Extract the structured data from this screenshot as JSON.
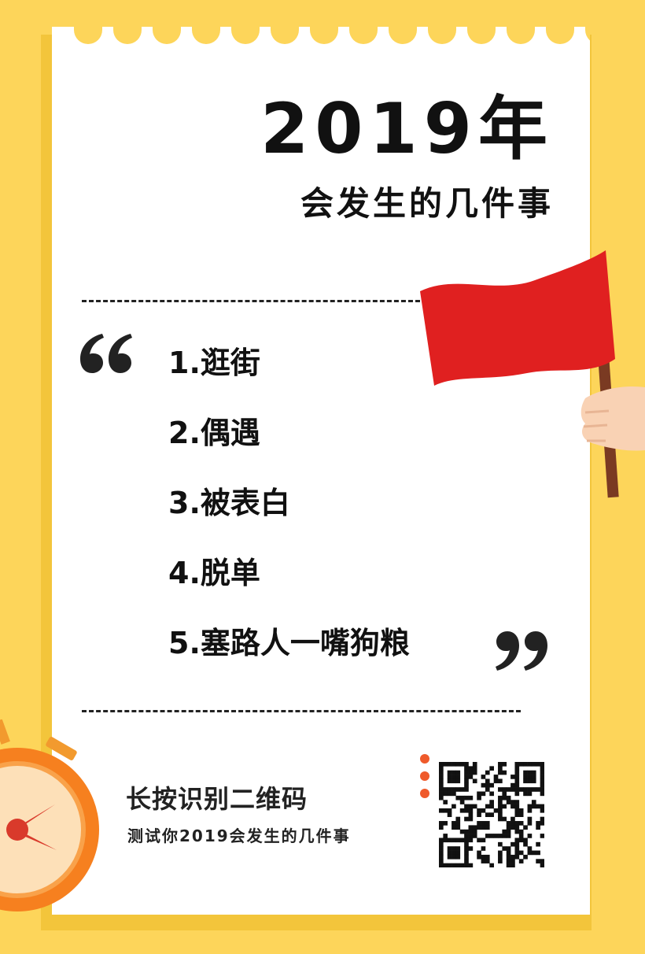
{
  "title": "2019年",
  "subtitle": "会发生的几件事",
  "items": [
    "1.逛街",
    "2.偶遇",
    "3.被表白",
    "4.脱单",
    "5.塞路人一嘴狗粮"
  ],
  "cta": {
    "main": "长按识别二维码",
    "sub": "测试你2019会发生的几件事"
  },
  "icons": {
    "open_quote": "open-quote-icon",
    "close_quote": "close-quote-icon",
    "flag": "red-flag-illustration",
    "clock": "stopwatch-illustration",
    "qr": "qr-code"
  },
  "colors": {
    "background": "#fdd55a",
    "paper": "#ffffff",
    "flag": "#e02020",
    "accent": "#ef5a2b",
    "text": "#111111"
  }
}
